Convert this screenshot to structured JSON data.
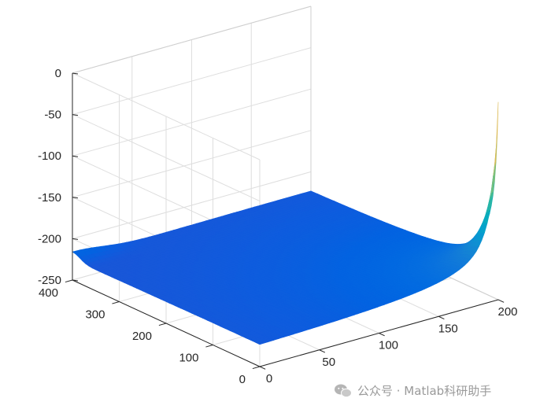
{
  "chart_data": {
    "type": "surface",
    "title": "",
    "xlabel": "",
    "ylabel": "",
    "zlabel": "",
    "xlim": [
      0,
      200
    ],
    "ylim": [
      0,
      400
    ],
    "zlim": [
      -250,
      0
    ],
    "x_ticks": [
      "0",
      "50",
      "100",
      "150",
      "200"
    ],
    "y_ticks": [
      "0",
      "100",
      "200",
      "300",
      "400"
    ],
    "z_ticks": [
      "0",
      "-50",
      "-100",
      "-150",
      "-200",
      "-250"
    ],
    "grid": true,
    "colormap": "parula",
    "surface": {
      "baseline": -230,
      "peak": {
        "x": 200,
        "y": 0,
        "z": -20
      },
      "ridge_along_x_at_y": 400,
      "ridge_along_y_at_x": 200
    }
  },
  "watermark": {
    "text": "公众号 · Matlab科研助手",
    "icon": "wechat-icon"
  }
}
